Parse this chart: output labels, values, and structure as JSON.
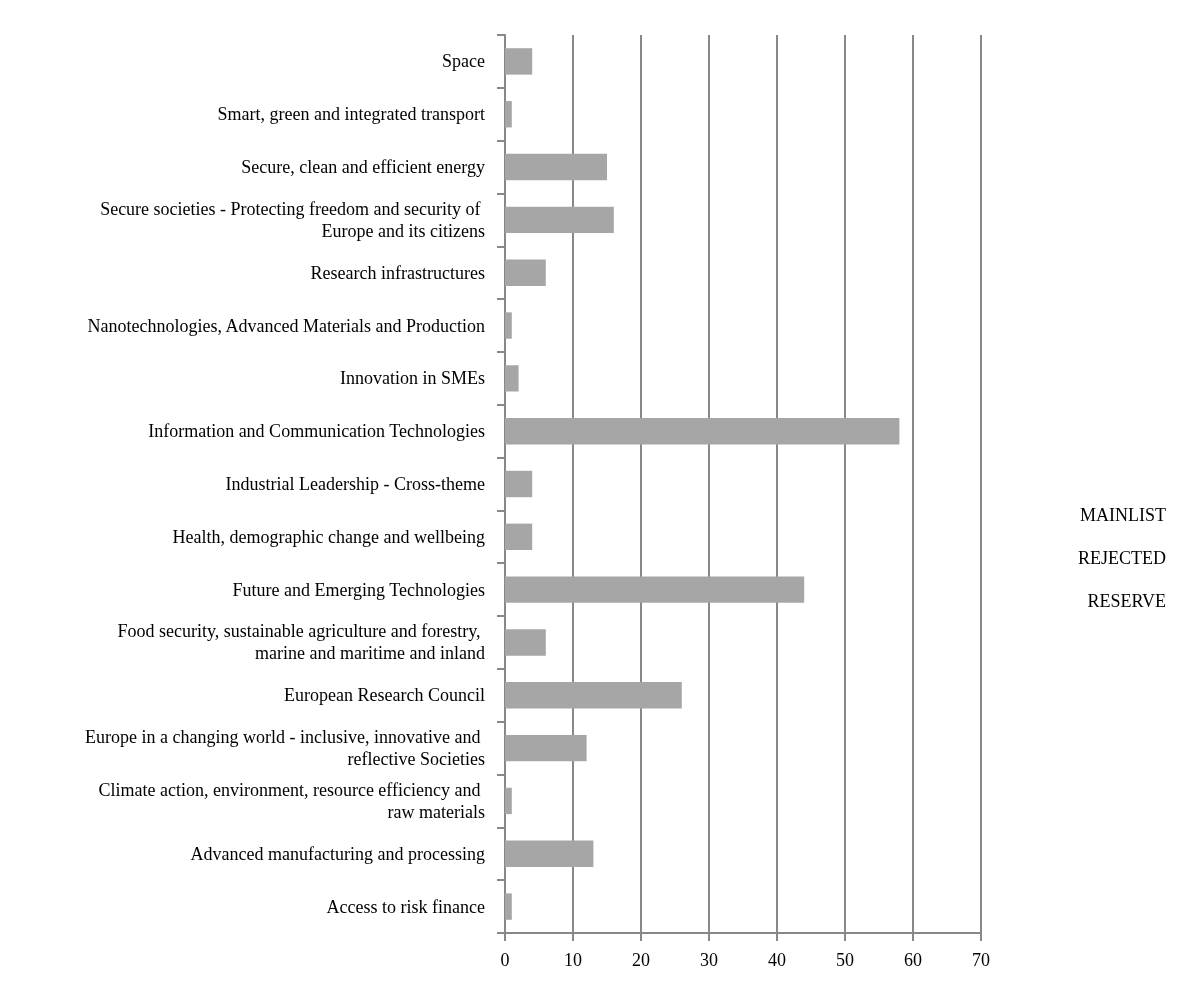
{
  "chart_data": {
    "type": "bar",
    "orientation": "horizontal",
    "categories": [
      "Space",
      "Smart, green and integrated transport",
      "Secure, clean and efficient energy",
      "Secure societies - Protecting freedom and security of Europe and its citizens",
      "Research infrastructures",
      "Nanotechnologies, Advanced Materials and Production",
      "Innovation in SMEs",
      "Information and Communication Technologies",
      "Industrial Leadership - Cross-theme",
      "Health, demographic change and wellbeing",
      "Future and Emerging Technologies",
      "Food security, sustainable agriculture and forestry, marine and maritime and inland",
      "European Research Council",
      "Europe in a changing world - inclusive, innovative and reflective Societies",
      "Climate action, environment, resource efficiency and raw materials",
      "Advanced manufacturing and processing",
      "Access to risk finance"
    ],
    "values": [
      4,
      1,
      15,
      16,
      6,
      1,
      2,
      58,
      4,
      4,
      44,
      6,
      26,
      12,
      1,
      13,
      1
    ],
    "color": "#a6a6a6",
    "xlim": [
      0,
      70
    ],
    "xticks": [
      0,
      10,
      20,
      30,
      40,
      50,
      60,
      70
    ],
    "grid": "x",
    "annotations": [
      "MAINLIST",
      "REJECTED",
      "RESERVE"
    ]
  }
}
